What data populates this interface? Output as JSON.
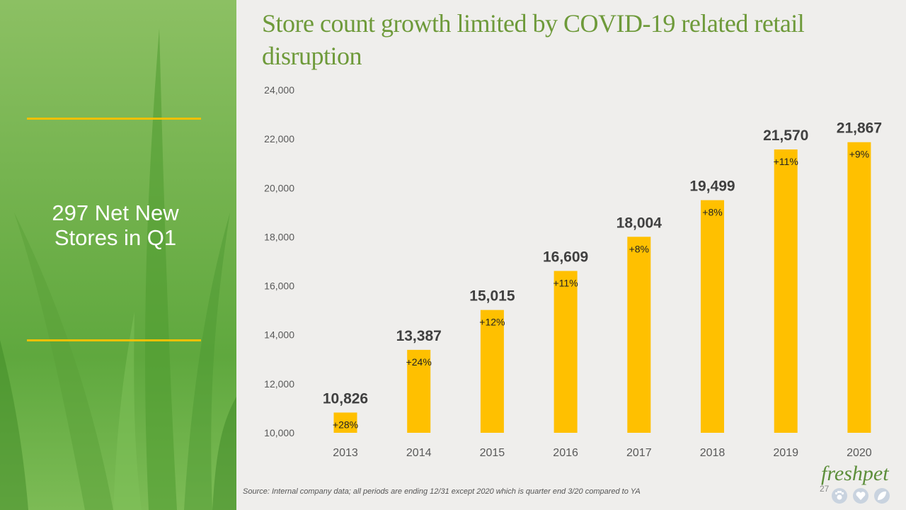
{
  "sidebar": {
    "headline": "297 Net New Stores in Q1"
  },
  "slide": {
    "title": "Store count growth limited by COVID-19 related retail disruption",
    "source": "Source:  Internal company data; all periods are ending 12/31 except 2020  which is quarter end 3/20  compared to YA",
    "page_number": "27"
  },
  "logo": {
    "text": "freshpet",
    "icons": [
      "paw-icon",
      "heart-icon",
      "leaf-icon"
    ]
  },
  "colors": {
    "bar": "#ffc000",
    "title": "#6e9a3a",
    "accent_rule": "#f2c000"
  },
  "chart_data": {
    "type": "bar",
    "categories": [
      "2013",
      "2014",
      "2015",
      "2016",
      "2017",
      "2018",
      "2019",
      "2020"
    ],
    "values": [
      10826,
      13387,
      15015,
      16609,
      18004,
      19499,
      21570,
      21867
    ],
    "value_labels": [
      "10,826",
      "13,387",
      "15,015",
      "16,609",
      "18,004",
      "19,499",
      "21,570",
      "21,867"
    ],
    "growth_labels": [
      "+28%",
      "+24%",
      "+12%",
      "+11%",
      "+8%",
      "+8%",
      "+11%",
      "+9%"
    ],
    "ylim": [
      10000,
      24000
    ],
    "yticks": [
      10000,
      12000,
      14000,
      16000,
      18000,
      20000,
      22000,
      24000
    ],
    "ytick_labels": [
      "10,000",
      "12,000",
      "14,000",
      "16,000",
      "18,000",
      "20,000",
      "22,000",
      "24,000"
    ],
    "grid": false,
    "legend": false
  }
}
